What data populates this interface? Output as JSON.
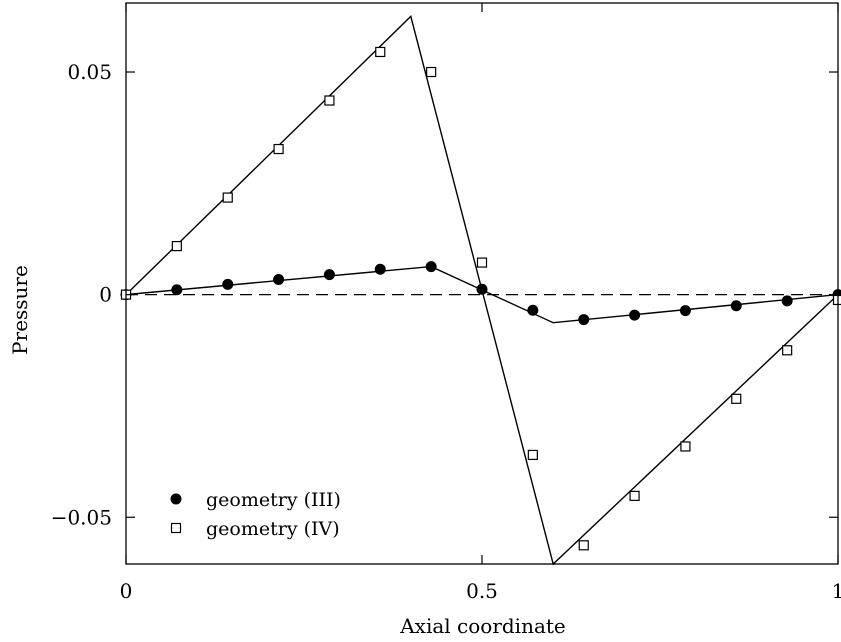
{
  "chart_data": {
    "type": "line",
    "xlabel": "Axial coordinate",
    "ylabel": "Pressure",
    "xlim": [
      0,
      1
    ],
    "ylim": [
      -0.0605,
      0.0655
    ],
    "grid": false,
    "legend_position": "bottom-left",
    "x_ticks": [
      {
        "value": 0,
        "label": "0"
      },
      {
        "value": 0.5,
        "label": "0.5"
      },
      {
        "value": 1,
        "label": "1"
      }
    ],
    "y_ticks": [
      {
        "value": -0.05,
        "label": "−0.05"
      },
      {
        "value": 0,
        "label": "0"
      },
      {
        "value": 0.05,
        "label": "0.05"
      }
    ],
    "reference_line": {
      "y": 0,
      "style": "dashed"
    },
    "series": [
      {
        "name": "geometry (III)",
        "marker": "filled-circle",
        "line": [
          [
            0,
            0
          ],
          [
            0.4286,
            0.0063
          ],
          [
            0.6,
            -0.0063
          ],
          [
            1,
            0
          ]
        ],
        "points": [
          [
            0,
            0
          ],
          [
            0.0714,
            0.0011
          ],
          [
            0.1429,
            0.0023
          ],
          [
            0.2143,
            0.0034
          ],
          [
            0.2857,
            0.0045
          ],
          [
            0.3571,
            0.0057
          ],
          [
            0.4286,
            0.0063
          ],
          [
            0.5,
            0.0012
          ],
          [
            0.5714,
            -0.0035
          ],
          [
            0.6429,
            -0.0056
          ],
          [
            0.7143,
            -0.0046
          ],
          [
            0.7857,
            -0.0036
          ],
          [
            0.8571,
            -0.0025
          ],
          [
            0.9286,
            -0.0014
          ],
          [
            1,
            0
          ]
        ]
      },
      {
        "name": "geometry (IV)",
        "marker": "open-square",
        "line": [
          [
            0,
            0
          ],
          [
            0.4,
            0.0625
          ],
          [
            0.6,
            -0.0605
          ],
          [
            1,
            0
          ]
        ],
        "points": [
          [
            0,
            0
          ],
          [
            0.0714,
            0.0109
          ],
          [
            0.1429,
            0.0218
          ],
          [
            0.2143,
            0.0327
          ],
          [
            0.2857,
            0.0436
          ],
          [
            0.3571,
            0.0545
          ],
          [
            0.4286,
            0.05
          ],
          [
            0.5,
            0.0072
          ],
          [
            0.5714,
            -0.036
          ],
          [
            0.6429,
            -0.0563
          ],
          [
            0.7143,
            -0.0452
          ],
          [
            0.7857,
            -0.0341
          ],
          [
            0.8571,
            -0.0234
          ],
          [
            0.9286,
            -0.0125
          ],
          [
            1,
            -0.0012
          ]
        ]
      }
    ]
  }
}
